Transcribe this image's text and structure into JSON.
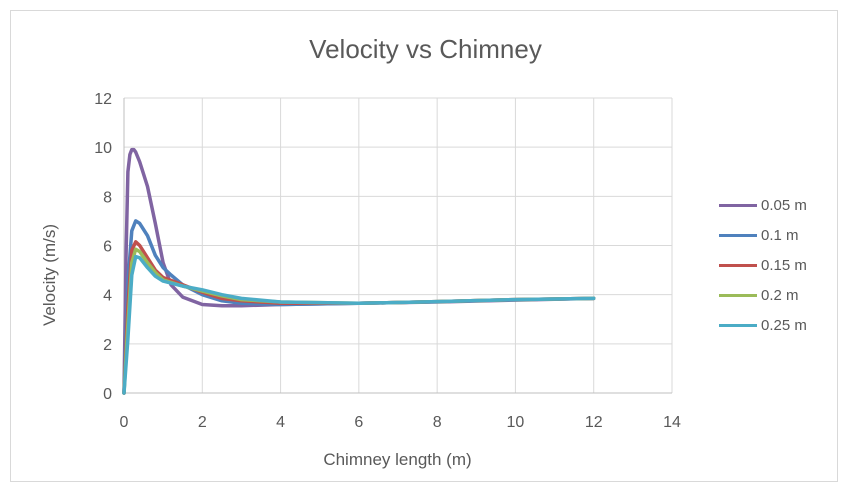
{
  "chart_data": {
    "type": "line",
    "title": "Velocity vs Chimney",
    "xlabel": "Chimney length (m)",
    "ylabel": "Velocity (m/s)",
    "xlim": [
      0,
      14
    ],
    "ylim": [
      0,
      12
    ],
    "xticks": [
      0,
      2,
      4,
      6,
      8,
      10,
      12,
      14
    ],
    "yticks": [
      0,
      2,
      4,
      6,
      8,
      10,
      12
    ],
    "grid": true,
    "legend_position": "right",
    "series": [
      {
        "name": "0.05 m",
        "color": "#8064a2",
        "x": [
          0,
          0.05,
          0.1,
          0.15,
          0.2,
          0.25,
          0.3,
          0.4,
          0.6,
          0.8,
          1.0,
          1.2,
          1.5,
          2.0,
          2.5,
          3,
          4,
          6,
          8,
          10,
          12
        ],
        "y": [
          0,
          5.5,
          9.0,
          9.7,
          9.9,
          9.9,
          9.8,
          9.4,
          8.4,
          6.9,
          5.3,
          4.4,
          3.9,
          3.6,
          3.55,
          3.55,
          3.6,
          3.65,
          3.7,
          3.78,
          3.85
        ]
      },
      {
        "name": "0.1 m",
        "color": "#4f81bd",
        "x": [
          0,
          0.1,
          0.2,
          0.3,
          0.4,
          0.6,
          0.8,
          1.0,
          1.2,
          1.5,
          2.0,
          2.5,
          3,
          4,
          6,
          8,
          10,
          12
        ],
        "y": [
          0,
          4.5,
          6.6,
          7.0,
          6.9,
          6.4,
          5.6,
          5.1,
          4.8,
          4.4,
          4.0,
          3.75,
          3.65,
          3.6,
          3.65,
          3.72,
          3.8,
          3.85
        ]
      },
      {
        "name": "0.15 m",
        "color": "#c0504d",
        "x": [
          0,
          0.1,
          0.2,
          0.3,
          0.4,
          0.6,
          0.8,
          1.0,
          1.5,
          2.0,
          2.5,
          3,
          4,
          6,
          8,
          10,
          12
        ],
        "y": [
          0,
          3.5,
          5.8,
          6.15,
          6.0,
          5.5,
          5.0,
          4.7,
          4.4,
          4.1,
          3.85,
          3.75,
          3.65,
          3.65,
          3.72,
          3.8,
          3.85
        ]
      },
      {
        "name": "0.2 m",
        "color": "#9bbb59",
        "x": [
          0,
          0.1,
          0.2,
          0.3,
          0.4,
          0.6,
          0.8,
          1.0,
          1.5,
          2.0,
          2.5,
          3,
          4,
          6,
          8,
          10,
          12
        ],
        "y": [
          0,
          2.8,
          5.3,
          5.85,
          5.75,
          5.3,
          4.9,
          4.6,
          4.35,
          4.15,
          3.95,
          3.8,
          3.7,
          3.65,
          3.72,
          3.8,
          3.85
        ]
      },
      {
        "name": "0.25 m",
        "color": "#4bacc6",
        "x": [
          0,
          0.1,
          0.2,
          0.3,
          0.4,
          0.6,
          0.8,
          1.0,
          1.5,
          2.0,
          2.5,
          3,
          4,
          6,
          8,
          10,
          12
        ],
        "y": [
          0,
          2.2,
          4.8,
          5.55,
          5.5,
          5.1,
          4.75,
          4.55,
          4.35,
          4.2,
          4.0,
          3.85,
          3.7,
          3.65,
          3.72,
          3.8,
          3.85
        ]
      }
    ]
  }
}
